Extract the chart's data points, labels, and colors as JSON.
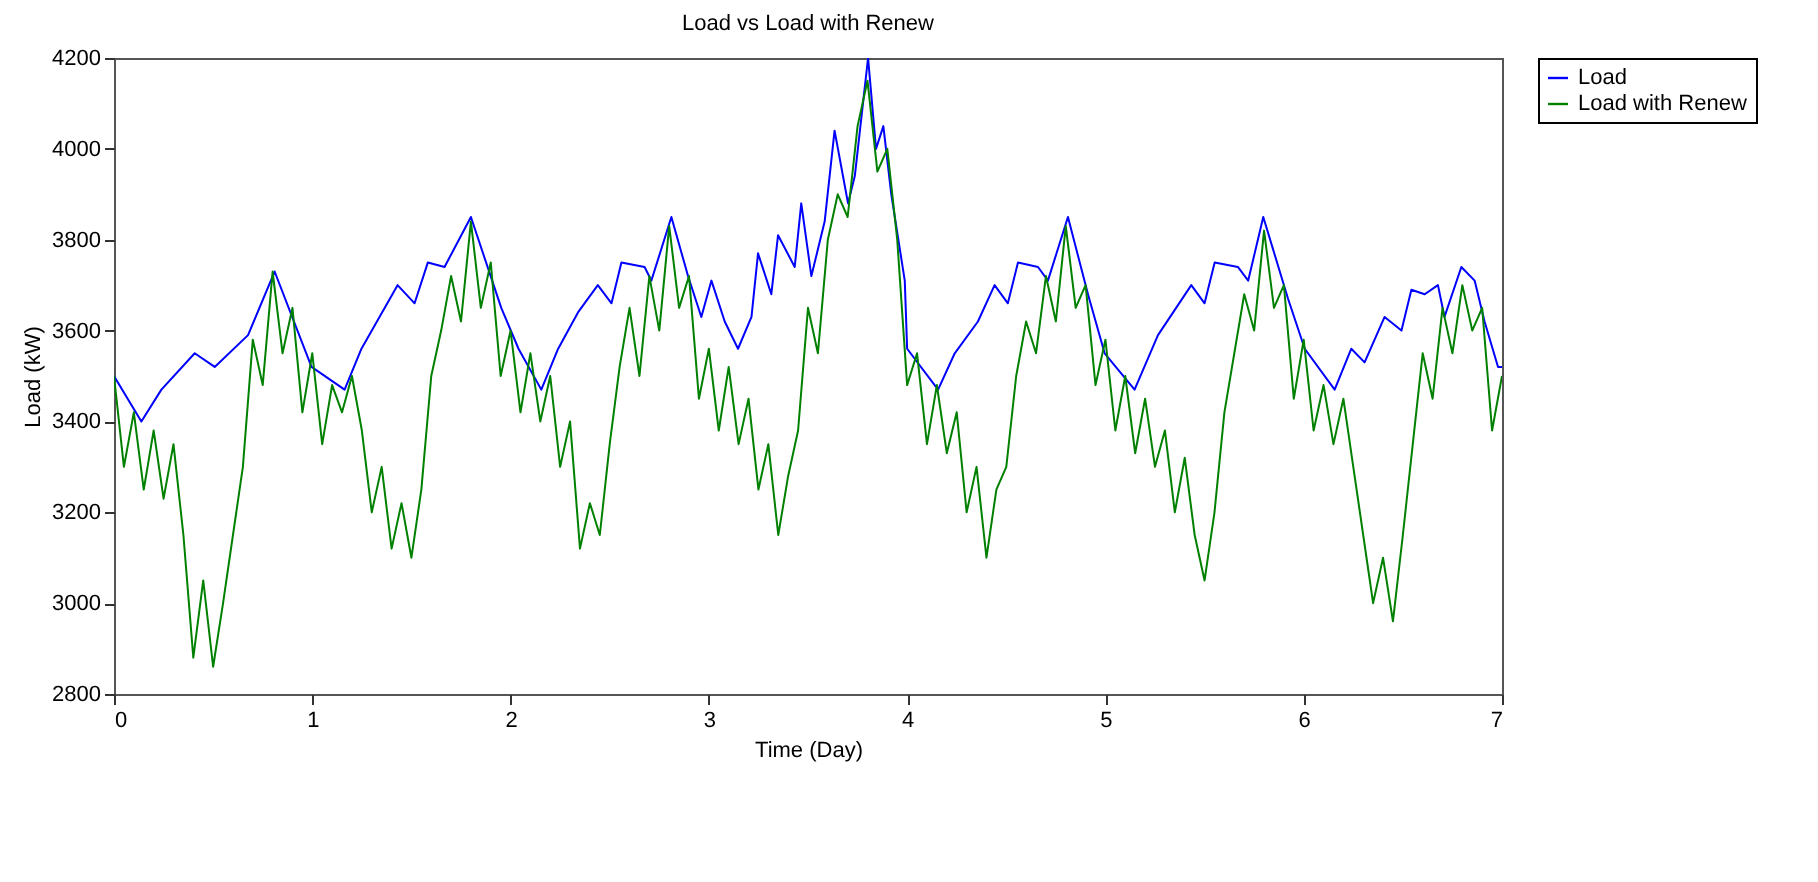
{
  "chart_data": {
    "type": "line",
    "title": "Load vs Load with Renew",
    "xlabel": "Time (Day)",
    "ylabel": "Load (kW)",
    "xlim": [
      0,
      7
    ],
    "xticks": [
      0,
      1,
      2,
      3,
      4,
      5,
      6,
      7
    ],
    "ylim": [
      2800,
      4200
    ],
    "yticks": [
      2800,
      3000,
      3200,
      3400,
      3600,
      3800,
      4000,
      4200
    ],
    "grid": false,
    "legend": "top right",
    "series": [
      {
        "name": "Load",
        "color": "#0000ff",
        "x": [
          0,
          0.138,
          0.239,
          0.407,
          0.508,
          0.676,
          0.81,
          0.996,
          1.163,
          1.248,
          1.43,
          1.516,
          1.583,
          1.667,
          1.8,
          1.953,
          2.04,
          2.155,
          2.24,
          2.34,
          2.44,
          2.509,
          2.559,
          2.676,
          2.71,
          2.811,
          2.895,
          2.962,
          3.013,
          3.08,
          3.147,
          3.215,
          3.248,
          3.315,
          3.349,
          3.433,
          3.466,
          3.517,
          3.584,
          3.634,
          3.685,
          3.702,
          3.736,
          3.803,
          3.843,
          3.88,
          3.92,
          3.988,
          4.0,
          4.156,
          4.24,
          4.357,
          4.441,
          4.508,
          4.559,
          4.66,
          4.71,
          4.811,
          4.912,
          4.996,
          5.147,
          5.265,
          5.433,
          5.5,
          5.551,
          5.668,
          5.72,
          5.796,
          5.921,
          6.005,
          6.156,
          6.24,
          6.307,
          6.408,
          6.493,
          6.543,
          6.61,
          6.677,
          6.71,
          6.795,
          6.862,
          6.912,
          6.98,
          7.0
        ],
        "values": [
          3500,
          3400,
          3470,
          3550,
          3520,
          3590,
          3730,
          3520,
          3470,
          3560,
          3700,
          3660,
          3750,
          3740,
          3850,
          3650,
          3560,
          3470,
          3560,
          3640,
          3700,
          3660,
          3750,
          3740,
          3710,
          3850,
          3720,
          3630,
          3710,
          3620,
          3560,
          3630,
          3770,
          3680,
          3810,
          3740,
          3880,
          3720,
          3840,
          4040,
          3920,
          3880,
          3940,
          4200,
          4000,
          4050,
          3900,
          3710,
          3560,
          3470,
          3550,
          3620,
          3700,
          3660,
          3750,
          3740,
          3710,
          3850,
          3680,
          3550,
          3470,
          3590,
          3700,
          3660,
          3750,
          3740,
          3710,
          3850,
          3670,
          3560,
          3470,
          3560,
          3530,
          3630,
          3600,
          3690,
          3680,
          3700,
          3630,
          3740,
          3710,
          3620,
          3520,
          3520
        ]
      },
      {
        "name": "Load with Renew",
        "color": "#008000",
        "x": [
          0,
          0.05,
          0.1,
          0.15,
          0.2,
          0.25,
          0.3,
          0.35,
          0.4,
          0.45,
          0.5,
          0.55,
          0.6,
          0.65,
          0.7,
          0.75,
          0.8,
          0.85,
          0.9,
          0.95,
          1.0,
          1.05,
          1.1,
          1.15,
          1.2,
          1.25,
          1.3,
          1.35,
          1.4,
          1.45,
          1.5,
          1.55,
          1.6,
          1.65,
          1.7,
          1.75,
          1.8,
          1.85,
          1.9,
          1.95,
          2.0,
          2.05,
          2.1,
          2.15,
          2.2,
          2.25,
          2.3,
          2.35,
          2.4,
          2.45,
          2.5,
          2.55,
          2.6,
          2.65,
          2.7,
          2.75,
          2.8,
          2.85,
          2.9,
          2.95,
          3.0,
          3.05,
          3.1,
          3.15,
          3.2,
          3.25,
          3.3,
          3.35,
          3.4,
          3.45,
          3.5,
          3.55,
          3.6,
          3.65,
          3.7,
          3.75,
          3.8,
          3.85,
          3.9,
          3.95,
          4.0,
          4.05,
          4.1,
          4.15,
          4.2,
          4.25,
          4.3,
          4.35,
          4.4,
          4.45,
          4.5,
          4.55,
          4.6,
          4.65,
          4.7,
          4.75,
          4.8,
          4.85,
          4.9,
          4.95,
          5.0,
          5.05,
          5.1,
          5.15,
          5.2,
          5.25,
          5.3,
          5.35,
          5.4,
          5.45,
          5.5,
          5.55,
          5.6,
          5.65,
          5.7,
          5.75,
          5.8,
          5.85,
          5.9,
          5.95,
          6.0,
          6.05,
          6.1,
          6.15,
          6.2,
          6.25,
          6.3,
          6.35,
          6.4,
          6.45,
          6.5,
          6.55,
          6.6,
          6.65,
          6.7,
          6.75,
          6.8,
          6.85,
          6.9,
          6.95,
          7.0
        ],
        "values": [
          3500,
          3300,
          3420,
          3250,
          3380,
          3230,
          3350,
          3150,
          2880,
          3050,
          2860,
          3000,
          3150,
          3300,
          3580,
          3480,
          3730,
          3550,
          3650,
          3420,
          3550,
          3350,
          3480,
          3420,
          3500,
          3380,
          3200,
          3300,
          3120,
          3220,
          3100,
          3250,
          3500,
          3600,
          3720,
          3620,
          3840,
          3650,
          3750,
          3500,
          3600,
          3420,
          3550,
          3400,
          3500,
          3300,
          3400,
          3120,
          3220,
          3150,
          3350,
          3520,
          3650,
          3500,
          3720,
          3600,
          3830,
          3650,
          3720,
          3450,
          3560,
          3380,
          3520,
          3350,
          3450,
          3250,
          3350,
          3150,
          3280,
          3380,
          3650,
          3550,
          3800,
          3900,
          3850,
          4050,
          4150,
          3950,
          4000,
          3800,
          3480,
          3550,
          3350,
          3480,
          3330,
          3420,
          3200,
          3300,
          3100,
          3250,
          3300,
          3500,
          3620,
          3550,
          3720,
          3620,
          3830,
          3650,
          3700,
          3480,
          3580,
          3380,
          3500,
          3330,
          3450,
          3300,
          3380,
          3200,
          3320,
          3150,
          3050,
          3200,
          3420,
          3550,
          3680,
          3600,
          3820,
          3650,
          3700,
          3450,
          3580,
          3380,
          3480,
          3350,
          3450,
          3300,
          3150,
          3000,
          3100,
          2960,
          3150,
          3350,
          3550,
          3450,
          3650,
          3550,
          3700,
          3600,
          3650,
          3380,
          3500
        ]
      }
    ]
  }
}
